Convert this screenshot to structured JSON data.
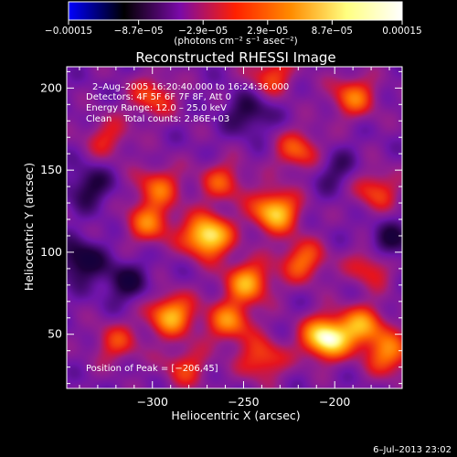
{
  "chart_data": {
    "type": "heatmap",
    "title": "Reconstructed RHESSI Image",
    "xlabel": "Heliocentric X (arcsec)",
    "ylabel": "Heliocentric Y (arcsec)",
    "xlim": [
      -347,
      -163
    ],
    "ylim": [
      17,
      213
    ],
    "x_ticks": [
      -300,
      -250,
      -200
    ],
    "x_tick_labels": [
      "−300",
      "−250",
      "−200"
    ],
    "y_ticks": [
      50,
      100,
      150,
      200
    ],
    "y_tick_labels": [
      "50",
      "100",
      "150",
      "200"
    ],
    "colorbar": {
      "range": [
        -0.00015,
        0.00015
      ],
      "tick_values": [
        -0.00015,
        -8.7e-05,
        -2.9e-05,
        2.9e-05,
        8.7e-05,
        0.00015
      ],
      "tick_labels": [
        "−0.00015",
        "−8.7e−05",
        "−2.9e−05",
        "2.9e−05",
        "8.7e−05",
        "0.00015"
      ],
      "units_text": "(photons cm⁻² s⁻¹ asec⁻²)",
      "colors": [
        "#0000ff",
        "#000000",
        "#7a0aa8",
        "#ff2000",
        "#ff8c00",
        "#ffff80",
        "#ffffff"
      ]
    },
    "annotations": {
      "time": "2–Aug–2005 16:20:40.000 to 16:24:36.000",
      "detectors": "Detectors: 4F 5F 6F 7F 8F, Att 0",
      "energy": "Energy Range: 12.0 – 25.0 keV",
      "clean": "Clean    Total counts: 2.86E+03",
      "peak": "Position of Peak = [−206,45]"
    },
    "peak_position": [
      -206,
      45
    ],
    "footer_date": "6–Jul–2013 23:02",
    "sources": [
      {
        "x": -270,
        "y": 110,
        "amp": 1.0
      },
      {
        "x": -205,
        "y": 48,
        "amp": 1.05
      },
      {
        "x": -233,
        "y": 125,
        "amp": 0.85
      },
      {
        "x": -290,
        "y": 62,
        "amp": 0.75
      },
      {
        "x": -248,
        "y": 82,
        "amp": 0.7
      },
      {
        "x": -185,
        "y": 55,
        "amp": 0.65
      },
      {
        "x": -302,
        "y": 118,
        "amp": 0.55
      },
      {
        "x": -258,
        "y": 58,
        "amp": 0.6
      },
      {
        "x": -218,
        "y": 95,
        "amp": 0.55
      },
      {
        "x": -180,
        "y": 92,
        "amp": 0.45
      },
      {
        "x": -170,
        "y": 38,
        "amp": 0.6
      },
      {
        "x": -320,
        "y": 45,
        "amp": 0.4
      },
      {
        "x": -297,
        "y": 140,
        "amp": 0.5
      },
      {
        "x": -262,
        "y": 143,
        "amp": 0.45
      },
      {
        "x": -220,
        "y": 162,
        "amp": 0.5
      },
      {
        "x": -190,
        "y": 195,
        "amp": 0.55
      },
      {
        "x": -235,
        "y": 208,
        "amp": 0.45
      },
      {
        "x": -300,
        "y": 195,
        "amp": 0.45
      },
      {
        "x": -178,
        "y": 138,
        "amp": 0.45
      },
      {
        "x": -325,
        "y": 170,
        "amp": 0.35
      },
      {
        "x": -240,
        "y": 35,
        "amp": 0.5
      },
      {
        "x": -282,
        "y": 30,
        "amp": 0.4
      },
      {
        "x": -340,
        "y": 95,
        "amp": -0.45
      },
      {
        "x": -315,
        "y": 82,
        "amp": -0.35
      },
      {
        "x": -170,
        "y": 105,
        "amp": -0.4
      },
      {
        "x": -247,
        "y": 185,
        "amp": -0.35
      },
      {
        "x": -335,
        "y": 140,
        "amp": -0.35
      },
      {
        "x": -200,
        "y": 150,
        "amp": -0.25
      }
    ]
  }
}
